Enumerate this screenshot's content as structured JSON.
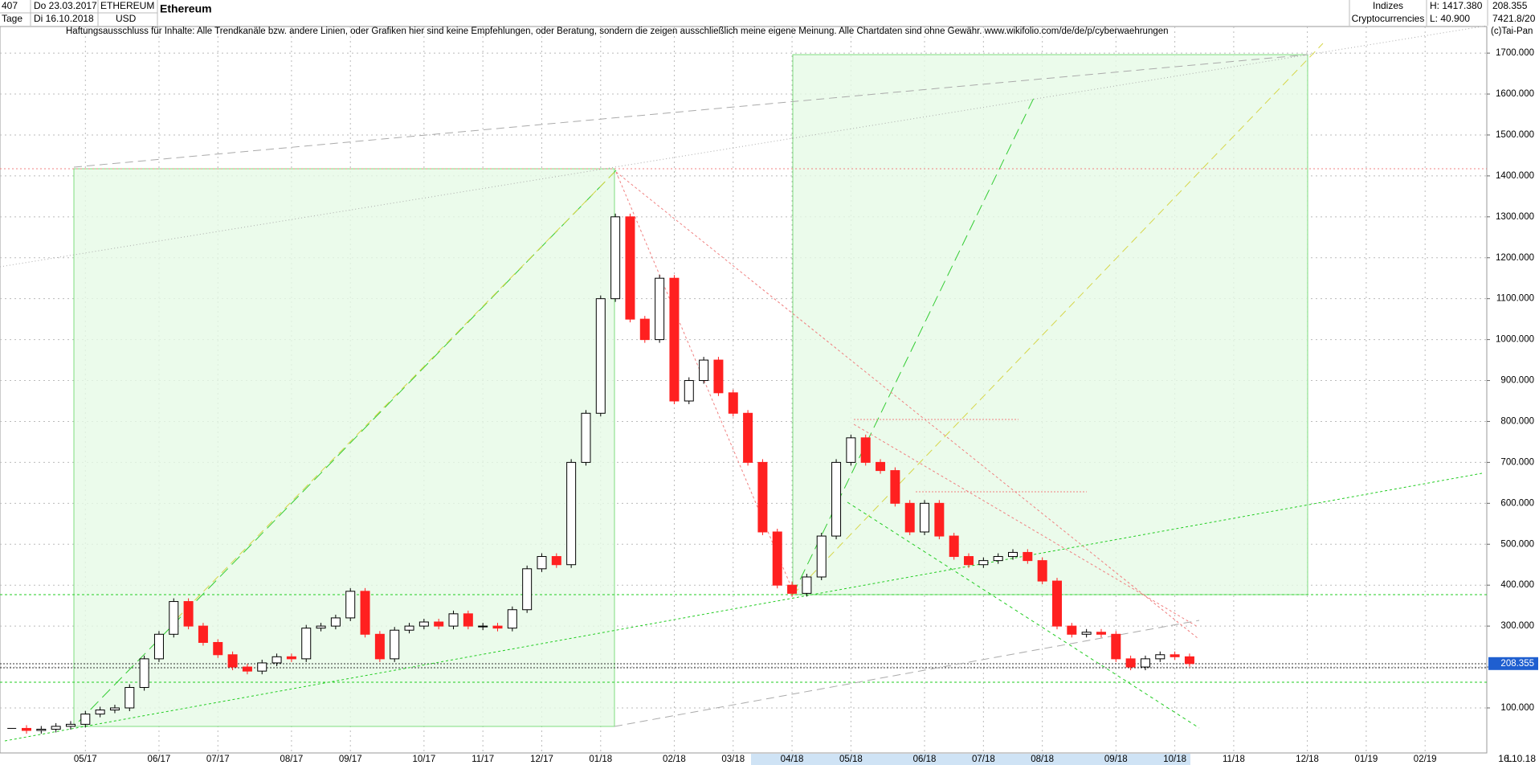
{
  "header": {
    "count": "407",
    "period": "Tage",
    "start": "Do 23.03.2017",
    "end": "Di 16.10.2018",
    "symbol": "ETHEREUM",
    "currency": "USD",
    "name": "Ethereum",
    "group": "Indizes",
    "subgroup": "Cryptocurrencies",
    "high": "H: 1417.380",
    "low": "L: 40.900",
    "last": "208.355",
    "stat": "7421.8/20",
    "disclaimer": "Haftungsausschluss für Inhalte: Alle Trendkanäle bzw. andere Linien, oder Grafiken hier sind keine Empfehlungen, oder Beratung, sondern die zeigen ausschließlich meine eigene Meinung. Alle Chartdaten sind ohne Gewähr.  www.wikifolio.com/de/de/p/cyberwaehrungen",
    "copyright": "(c)Tai-Pan",
    "scale_mode": "L",
    "date": "16.10.18"
  },
  "chart_data": {
    "type": "candlestick",
    "up_color": "#000000",
    "down_color": "#ff2020",
    "grid": true,
    "categories": [
      null,
      null,
      null,
      null,
      null,
      "05/17",
      null,
      null,
      null,
      null,
      "06/17",
      null,
      null,
      null,
      "07/17",
      null,
      null,
      null,
      null,
      "08/17",
      null,
      null,
      null,
      "09/17",
      null,
      null,
      null,
      null,
      "10/17",
      null,
      null,
      null,
      "11/17",
      null,
      null,
      null,
      "12/17",
      null,
      null,
      null,
      "01/18",
      null,
      null,
      null,
      null,
      "02/18",
      null,
      null,
      null,
      "03/18",
      null,
      null,
      null,
      "04/18",
      null,
      null,
      null,
      "05/18",
      null,
      null,
      null,
      null,
      "06/18",
      null,
      null,
      null,
      "07/18",
      null,
      null,
      null,
      "08/18",
      null,
      null,
      null,
      null,
      "09/18",
      null,
      null,
      null,
      "10/18",
      null,
      null,
      null,
      "11/18",
      null,
      null,
      null,
      null,
      "12/18",
      null,
      null,
      null,
      "01/19",
      null,
      null,
      null,
      "02/19",
      null,
      null,
      null
    ],
    "values": [
      50,
      45,
      48,
      55,
      60,
      85,
      95,
      100,
      150,
      220,
      280,
      360,
      300,
      260,
      230,
      200,
      190,
      210,
      225,
      220,
      295,
      300,
      320,
      385,
      280,
      220,
      290,
      300,
      310,
      300,
      330,
      300,
      300,
      295,
      340,
      440,
      470,
      450,
      700,
      820,
      1100,
      1300,
      1050,
      1000,
      1150,
      850,
      900,
      950,
      870,
      820,
      700,
      530,
      400,
      380,
      420,
      520,
      700,
      760,
      700,
      680,
      600,
      530,
      600,
      520,
      470,
      450,
      460,
      470,
      480,
      460,
      410,
      300,
      280,
      285,
      280,
      220,
      200,
      220,
      230,
      225,
      208.355,
      null,
      null,
      null,
      null,
      null,
      null,
      null,
      null,
      null,
      null,
      null,
      null,
      null,
      null,
      null,
      null,
      null,
      null,
      null
    ],
    "ylim": [
      -10,
      1765
    ],
    "yticks": [
      {
        "value": 100,
        "label": "100.000"
      },
      {
        "value": 200,
        "label": "200.000"
      },
      {
        "value": 300,
        "label": "300.000"
      },
      {
        "value": 400,
        "label": "400.000"
      },
      {
        "value": 500,
        "label": "500.000"
      },
      {
        "value": 600,
        "label": "600.000"
      },
      {
        "value": 700,
        "label": "700.000"
      },
      {
        "value": 800,
        "label": "800.000"
      },
      {
        "value": 900,
        "label": "900.000"
      },
      {
        "value": 1000,
        "label": "1000.000"
      },
      {
        "value": 1100,
        "label": "1100.000"
      },
      {
        "value": 1200,
        "label": "1200.000"
      },
      {
        "value": 1300,
        "label": "1300.000"
      },
      {
        "value": 1400,
        "label": "1400.000"
      },
      {
        "value": 1500,
        "label": "1500.000"
      },
      {
        "value": 1600,
        "label": "1600.000"
      },
      {
        "value": 1700,
        "label": "1700.000"
      }
    ]
  }
}
